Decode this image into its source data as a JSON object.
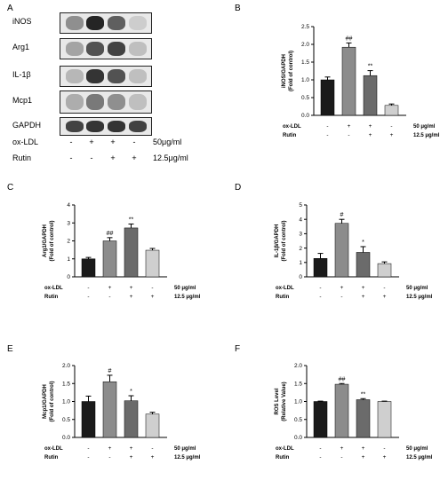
{
  "panel_letters": [
    "A",
    "B",
    "C",
    "D",
    "E",
    "F"
  ],
  "blot": {
    "proteins": [
      "iNOS",
      "Arg1",
      "IL-1β",
      "Mcp1",
      "GAPDH"
    ],
    "band_intensity": [
      [
        0.55,
        0.95,
        0.75,
        0.2
      ],
      [
        0.45,
        0.8,
        0.85,
        0.3
      ],
      [
        0.35,
        0.9,
        0.8,
        0.3
      ],
      [
        0.4,
        0.65,
        0.55,
        0.3
      ],
      [
        0.85,
        0.9,
        0.9,
        0.85
      ]
    ],
    "conditions": [
      {
        "name": "ox-LDL",
        "signs": [
          "-",
          "+",
          "+",
          "-"
        ],
        "dose": "50μg/ml"
      },
      {
        "name": "Rutin",
        "signs": [
          "-",
          "-",
          "+",
          "+"
        ],
        "dose": "12.5μg/ml"
      }
    ]
  },
  "bar_colors": [
    "#1a1a1a",
    "#8c8c8c",
    "#6b6b6b",
    "#cfcfcf"
  ],
  "treatments": [
    {
      "name": "ox-LDL",
      "signs": [
        "-",
        "+",
        "+",
        "-"
      ],
      "dose": "50 μg/ml"
    },
    {
      "name": "Rutin",
      "signs": [
        "-",
        "-",
        "+",
        "+"
      ],
      "dose": "12.5 μg/ml"
    }
  ],
  "chart_data": [
    {
      "panel": "B",
      "type": "bar",
      "ylabel": "iNOS/GAPDH",
      "ylabel2": "(Fold of control)",
      "ylim": [
        0,
        2.5
      ],
      "yticks": [
        "0.0",
        "0.5",
        "1.0",
        "1.5",
        "2.0",
        "2.5"
      ],
      "values": [
        1.0,
        1.92,
        1.12,
        0.28
      ],
      "errors": [
        0.08,
        0.12,
        0.14,
        0.04
      ],
      "annotations": [
        "",
        "##",
        "**",
        ""
      ]
    },
    {
      "panel": "C",
      "type": "bar",
      "ylabel": "Arg1/GAPDH",
      "ylabel2": "(Fold of control)",
      "ylim": [
        0,
        4
      ],
      "yticks": [
        "0",
        "1",
        "2",
        "3",
        "4"
      ],
      "values": [
        1.0,
        2.0,
        2.72,
        1.48
      ],
      "errors": [
        0.08,
        0.18,
        0.22,
        0.1
      ],
      "annotations": [
        "",
        "##",
        "**",
        ""
      ]
    },
    {
      "panel": "D",
      "type": "bar",
      "ylabel": "IL-1β/GAPDH",
      "ylabel2": "(Fold of control)",
      "ylim": [
        0,
        5
      ],
      "yticks": [
        "0",
        "1",
        "2",
        "3",
        "4",
        "5"
      ],
      "values": [
        1.28,
        3.72,
        1.7,
        0.92
      ],
      "errors": [
        0.35,
        0.28,
        0.4,
        0.12
      ],
      "annotations": [
        "",
        "#",
        "*",
        ""
      ]
    },
    {
      "panel": "E",
      "type": "bar",
      "ylabel": "Mcp1/GAPDH",
      "ylabel2": "(Fold of control)",
      "ylim": [
        0,
        2.0
      ],
      "yticks": [
        "0.0",
        "0.5",
        "1.0",
        "1.5",
        "2.0"
      ],
      "values": [
        1.0,
        1.55,
        1.02,
        0.65
      ],
      "errors": [
        0.15,
        0.18,
        0.14,
        0.05
      ],
      "annotations": [
        "",
        "#",
        "*",
        ""
      ]
    },
    {
      "panel": "F",
      "type": "bar",
      "ylabel": "ROS Level",
      "ylabel2": "(Relative Value)",
      "ylim": [
        0,
        2.0
      ],
      "yticks": [
        "0.0",
        "0.5",
        "1.0",
        "1.5",
        "2.0"
      ],
      "values": [
        1.0,
        1.48,
        1.05,
        1.0
      ],
      "errors": [
        0.01,
        0.02,
        0.03,
        0.01
      ],
      "annotations": [
        "",
        "##",
        "**",
        ""
      ]
    }
  ]
}
